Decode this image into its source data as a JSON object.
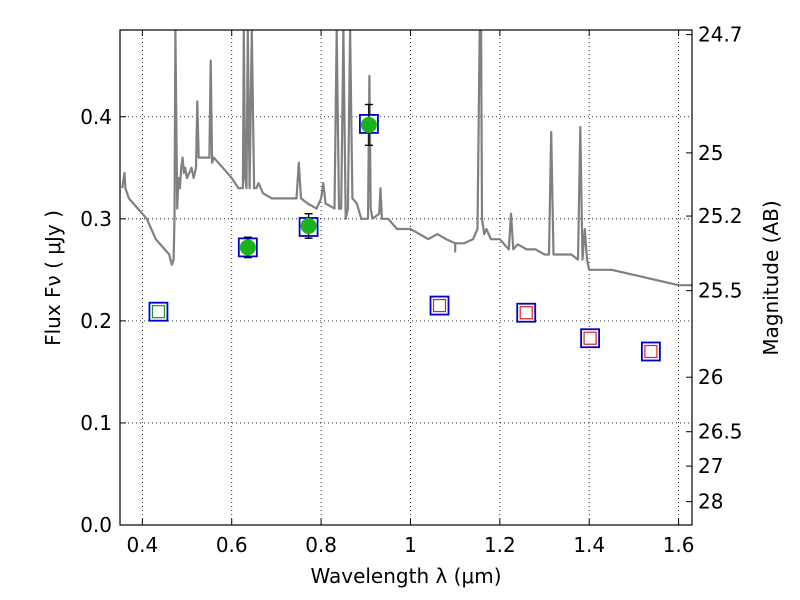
{
  "chart_data": {
    "type": "scatter",
    "xlabel": "Wavelength  λ (μm)",
    "ylabel": "Flux  Fν  ( μJy )",
    "ylabel_right": "Magnitude (AB)",
    "xlim": [
      0.35,
      1.63
    ],
    "ylim": [
      0.0,
      0.485
    ],
    "grid": true,
    "x_ticks": [
      0.4,
      0.6,
      0.8,
      1.0,
      1.2,
      1.4,
      1.6
    ],
    "x_tick_labels": [
      "0.4",
      "0.6",
      "0.8",
      "1",
      "1.2",
      "1.4",
      "1.6"
    ],
    "y_ticks": [
      0.0,
      0.1,
      0.2,
      0.3,
      0.4
    ],
    "y_tick_labels": [
      "0.0",
      "0.1",
      "0.2",
      "0.3",
      "0.4"
    ],
    "right_ticks": [
      {
        "flux": 0.4805,
        "label": "24.7"
      },
      {
        "flux": 0.3646,
        "label": "25"
      },
      {
        "flux": 0.3027,
        "label": "25.2"
      },
      {
        "flux": 0.2296,
        "label": "25.5"
      },
      {
        "flux": 0.1448,
        "label": "26"
      },
      {
        "flux": 0.0914,
        "label": "26.5"
      },
      {
        "flux": 0.0577,
        "label": "27"
      },
      {
        "flux": 0.0229,
        "label": "28"
      }
    ],
    "series": [
      {
        "kind": "line",
        "color": "#808080",
        "x": [
          0.355,
          0.36,
          0.362,
          0.37,
          0.39,
          0.41,
          0.43,
          0.45,
          0.46,
          0.466,
          0.47,
          0.472,
          0.474,
          0.476,
          0.478,
          0.481,
          0.484,
          0.487,
          0.49,
          0.493,
          0.496,
          0.5,
          0.505,
          0.51,
          0.515,
          0.52,
          0.523,
          0.526,
          0.53,
          0.54,
          0.545,
          0.55,
          0.553,
          0.556,
          0.56,
          0.57,
          0.58,
          0.6,
          0.615,
          0.625,
          0.627,
          0.63,
          0.633,
          0.636,
          0.64,
          0.645,
          0.65,
          0.655,
          0.66,
          0.67,
          0.69,
          0.71,
          0.73,
          0.745,
          0.75,
          0.755,
          0.77,
          0.79,
          0.8,
          0.805,
          0.81,
          0.83,
          0.835,
          0.84,
          0.845,
          0.85,
          0.855,
          0.86,
          0.865,
          0.87,
          0.88,
          0.89,
          0.905,
          0.908,
          0.911,
          0.915,
          0.93,
          0.933,
          0.936,
          0.95,
          0.97,
          0.99,
          1.0,
          1.02,
          1.04,
          1.06,
          1.08,
          1.1,
          1.1,
          1.1,
          1.12,
          1.14,
          1.15,
          1.155,
          1.158,
          1.16,
          1.165,
          1.17,
          1.18,
          1.2,
          1.22,
          1.225,
          1.23,
          1.24,
          1.26,
          1.28,
          1.3,
          1.31,
          1.315,
          1.32,
          1.34,
          1.36,
          1.375,
          1.38,
          1.385,
          1.39,
          1.395,
          1.4,
          1.42,
          1.45,
          1.5,
          1.55,
          1.6,
          1.63
        ],
        "y": [
          0.33,
          0.345,
          0.33,
          0.32,
          0.31,
          0.3,
          0.28,
          0.27,
          0.265,
          0.255,
          0.26,
          0.3,
          0.485,
          0.4,
          0.31,
          0.34,
          0.33,
          0.35,
          0.36,
          0.345,
          0.35,
          0.34,
          0.345,
          0.35,
          0.34,
          0.35,
          0.415,
          0.36,
          0.36,
          0.36,
          0.36,
          0.36,
          0.455,
          0.355,
          0.36,
          0.355,
          0.35,
          0.34,
          0.33,
          0.33,
          0.485,
          0.34,
          0.33,
          0.485,
          0.33,
          0.485,
          0.33,
          0.33,
          0.335,
          0.325,
          0.32,
          0.32,
          0.32,
          0.32,
          0.355,
          0.32,
          0.315,
          0.31,
          0.32,
          0.335,
          0.315,
          0.31,
          0.485,
          0.31,
          0.31,
          0.485,
          0.3,
          0.31,
          0.485,
          0.32,
          0.315,
          0.3,
          0.3,
          0.44,
          0.31,
          0.3,
          0.305,
          0.33,
          0.3,
          0.3,
          0.29,
          0.29,
          0.29,
          0.285,
          0.28,
          0.285,
          0.28,
          0.276,
          0.268,
          0.276,
          0.276,
          0.28,
          0.29,
          0.485,
          0.485,
          0.3,
          0.285,
          0.29,
          0.28,
          0.28,
          0.27,
          0.305,
          0.27,
          0.275,
          0.27,
          0.27,
          0.265,
          0.265,
          0.385,
          0.265,
          0.265,
          0.265,
          0.26,
          0.39,
          0.26,
          0.29,
          0.26,
          0.25,
          0.25,
          0.25,
          0.245,
          0.24,
          0.235,
          0.235
        ]
      },
      {
        "kind": "points",
        "marker": "filled-circle",
        "color": "#1ab31a",
        "x": [
          0.636,
          0.772,
          0.907
        ],
        "y": [
          0.272,
          0.293,
          0.392
        ],
        "yerr": [
          0.01,
          0.012,
          0.02
        ]
      },
      {
        "kind": "points",
        "marker": "blue-square",
        "color": "#0000cc",
        "x": [
          0.436,
          0.636,
          0.772,
          0.907,
          1.065,
          1.259,
          1.402,
          1.538
        ],
        "y": [
          0.209,
          0.272,
          0.292,
          0.393,
          0.215,
          0.208,
          0.183,
          0.17
        ]
      },
      {
        "kind": "points",
        "marker": "red-square",
        "color": "#dd2222",
        "x": [
          1.065,
          1.259,
          1.402,
          1.538
        ],
        "y": [
          0.215,
          0.208,
          0.183,
          0.17
        ]
      },
      {
        "kind": "points",
        "marker": "green-square",
        "color": "#1a9a1a",
        "x": [
          0.436
        ],
        "y": [
          0.209
        ]
      }
    ]
  }
}
